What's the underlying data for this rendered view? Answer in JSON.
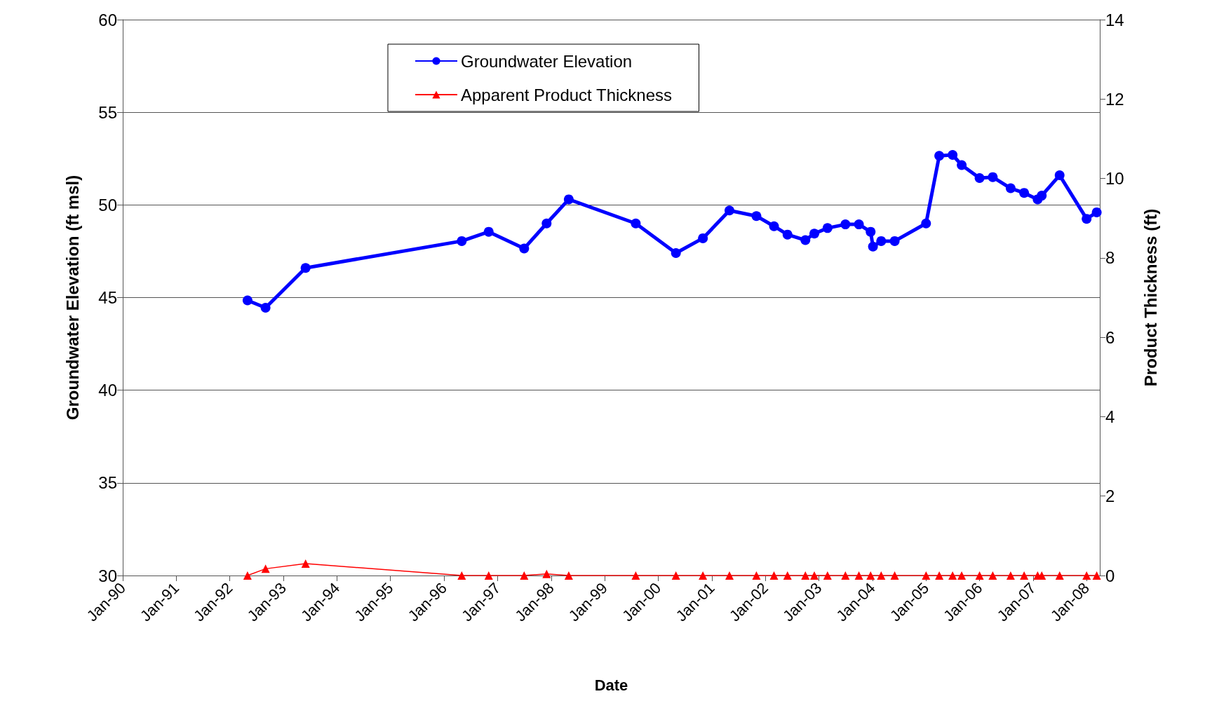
{
  "chart_data": {
    "type": "line",
    "xlabel": "Date",
    "ylabel": "Groundwater Elevation (ft msl)",
    "y2label": "Product Thickness (ft)",
    "x": [
      "1992-05",
      "1992-09",
      "1993-06",
      "1996-05",
      "1996-11",
      "1997-07",
      "1997-12",
      "1998-05",
      "1999-08",
      "2000-05",
      "2000-11",
      "2001-05",
      "2001-11",
      "2002-03",
      "2002-06",
      "2002-10",
      "2002-12",
      "2003-03",
      "2003-07",
      "2003-10",
      "2003-12-20",
      "2004-01-05",
      "2004-03",
      "2004-06",
      "2005-01",
      "2005-04",
      "2005-07",
      "2005-09",
      "2006-01",
      "2006-04",
      "2006-08",
      "2006-11",
      "2007-02",
      "2007-03",
      "2007-07",
      "2008-01",
      "2008-03-10"
    ],
    "series": [
      {
        "name": "Groundwater Elevation",
        "color": "#0000ff",
        "marker": "circle",
        "values": [
          44.85,
          44.45,
          46.6,
          48.05,
          48.55,
          47.65,
          49.0,
          50.3,
          49.0,
          47.4,
          48.2,
          49.7,
          49.4,
          48.85,
          48.4,
          48.1,
          48.45,
          48.75,
          48.95,
          48.95,
          48.55,
          47.75,
          48.05,
          48.05,
          49.0,
          52.65,
          52.7,
          52.15,
          51.45,
          51.5,
          50.9,
          50.65,
          50.3,
          50.5,
          51.6,
          49.25,
          49.6
        ]
      },
      {
        "name": "Apparent Product Thickness",
        "color": "#ff0000",
        "marker": "triangle",
        "axis": "y2",
        "values": [
          0,
          0.17,
          0.3,
          0,
          0,
          0,
          0.04,
          0,
          0,
          0,
          0,
          0,
          0,
          0,
          0,
          0,
          0,
          0,
          0,
          0,
          0,
          null,
          0,
          0,
          0,
          0,
          0,
          0,
          0,
          0,
          0,
          0,
          0,
          0,
          0,
          0,
          0
        ]
      }
    ],
    "xlim": [
      "1990-01-01",
      "2008-03-31"
    ],
    "xticks": [
      {
        "value": "1990-01",
        "label": "Jan-90"
      },
      {
        "value": "1991-01",
        "label": "Jan-91"
      },
      {
        "value": "1992-01",
        "label": "Jan-92"
      },
      {
        "value": "1993-01",
        "label": "Jan-93"
      },
      {
        "value": "1994-01",
        "label": "Jan-94"
      },
      {
        "value": "1995-01",
        "label": "Jan-95"
      },
      {
        "value": "1996-01",
        "label": "Jan-96"
      },
      {
        "value": "1997-01",
        "label": "Jan-97"
      },
      {
        "value": "1998-01",
        "label": "Jan-98"
      },
      {
        "value": "1999-01",
        "label": "Jan-99"
      },
      {
        "value": "2000-01",
        "label": "Jan-00"
      },
      {
        "value": "2001-01",
        "label": "Jan-01"
      },
      {
        "value": "2002-01",
        "label": "Jan-02"
      },
      {
        "value": "2003-01",
        "label": "Jan-03"
      },
      {
        "value": "2004-01",
        "label": "Jan-04"
      },
      {
        "value": "2005-01",
        "label": "Jan-05"
      },
      {
        "value": "2006-01",
        "label": "Jan-06"
      },
      {
        "value": "2007-01",
        "label": "Jan-07"
      },
      {
        "value": "2008-01",
        "label": "Jan-08"
      }
    ],
    "ylim": [
      30,
      60
    ],
    "yticks": [
      30,
      35,
      40,
      45,
      50,
      55,
      60
    ],
    "y2lim": [
      0,
      14
    ],
    "y2ticks": [
      0,
      2,
      4,
      6,
      8,
      10,
      12,
      14
    ],
    "grid": "y",
    "legend": "top"
  }
}
